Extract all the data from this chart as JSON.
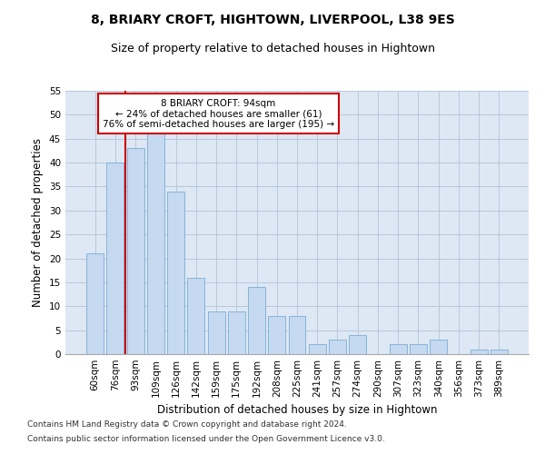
{
  "title": "8, BRIARY CROFT, HIGHTOWN, LIVERPOOL, L38 9ES",
  "subtitle": "Size of property relative to detached houses in Hightown",
  "xlabel": "Distribution of detached houses by size in Hightown",
  "ylabel": "Number of detached properties",
  "categories": [
    "60sqm",
    "76sqm",
    "93sqm",
    "109sqm",
    "126sqm",
    "142sqm",
    "159sqm",
    "175sqm",
    "192sqm",
    "208sqm",
    "225sqm",
    "241sqm",
    "257sqm",
    "274sqm",
    "290sqm",
    "307sqm",
    "323sqm",
    "340sqm",
    "356sqm",
    "373sqm",
    "389sqm"
  ],
  "values": [
    21,
    40,
    43,
    46,
    34,
    16,
    9,
    9,
    14,
    8,
    8,
    2,
    3,
    4,
    0,
    2,
    2,
    3,
    0,
    1,
    1
  ],
  "bar_color": "#c5d9f0",
  "bar_edge_color": "#7aadd4",
  "grid_color": "#b8c8dc",
  "bg_color": "#dde8f4",
  "vline_color": "#cc0000",
  "vline_x_index": 2,
  "box_text_line1": "8 BRIARY CROFT: 94sqm",
  "box_text_line2": "← 24% of detached houses are smaller (61)",
  "box_text_line3": "76% of semi-detached houses are larger (195) →",
  "box_edge_color": "#cc0000",
  "ylim": [
    0,
    55
  ],
  "yticks": [
    0,
    5,
    10,
    15,
    20,
    25,
    30,
    35,
    40,
    45,
    50,
    55
  ],
  "footnote1": "Contains HM Land Registry data © Crown copyright and database right 2024.",
  "footnote2": "Contains public sector information licensed under the Open Government Licence v3.0.",
  "title_fontsize": 10,
  "subtitle_fontsize": 9,
  "tick_fontsize": 7.5,
  "ylabel_fontsize": 8.5,
  "xlabel_fontsize": 8.5,
  "footnote_fontsize": 6.5
}
